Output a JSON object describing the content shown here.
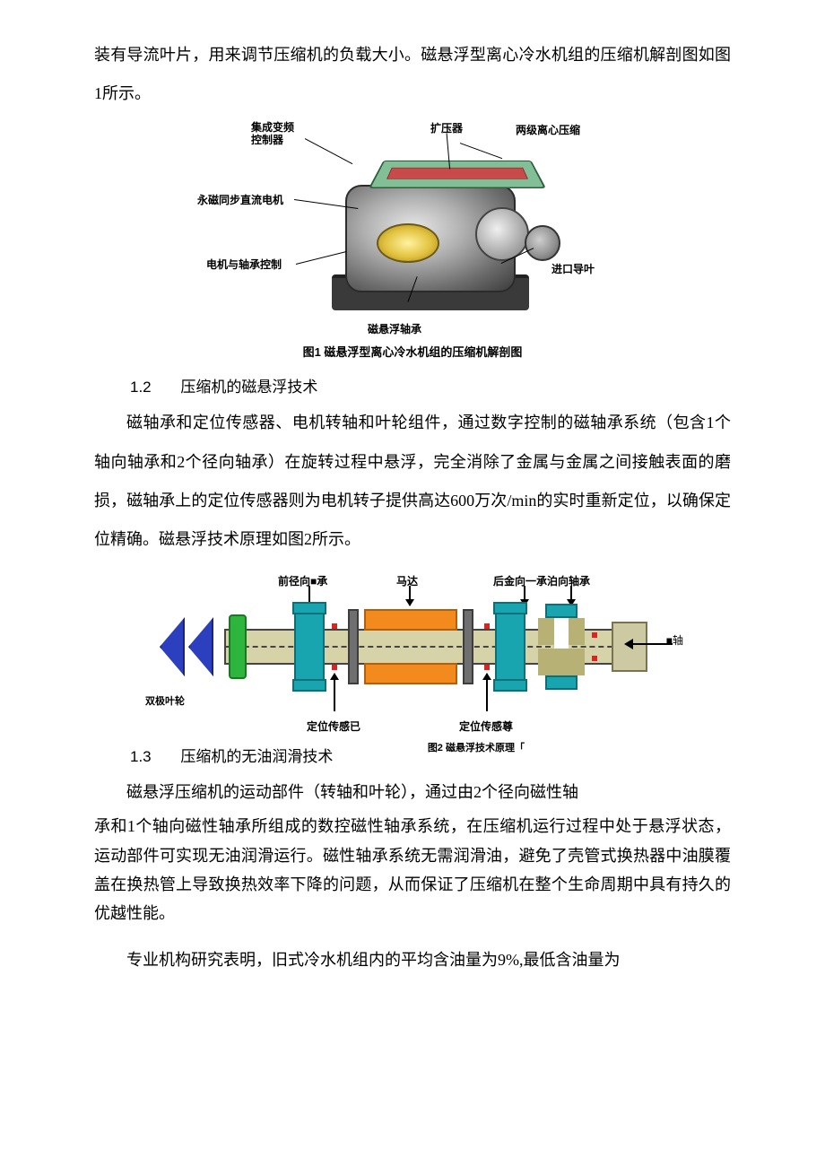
{
  "para1": "装有导流叶片，用来调节压缩机的负载大小。磁悬浮型离心冷水机组的压缩机解剖图如图1所示。",
  "fig1": {
    "callout_top_left": "集成变频\n控制器",
    "callout_top_mid": "扩压器",
    "callout_top_right": "两级离心压缩",
    "callout_left1": "永磁同步直流电机",
    "callout_left2": "电机与轴承控制",
    "callout_bottom": "磁悬浮轴承",
    "callout_right": "进口导叶",
    "caption": "图1 磁悬浮型离心冷水机组的压缩机解剖图"
  },
  "sec12_num": "1.2",
  "sec12_title": "压缩机的磁悬浮技术",
  "para12": "磁轴承和定位传感器、电机转轴和叶轮组件，通过数字控制的磁轴承系统（包含1个轴向轴承和2个径向轴承）在旋转过程中悬浮，完全消除了金属与金属之间接触表面的磨损，磁轴承上的定位传感器则为电机转子提供高达600万次/min的实时重新定位，以确保定位精确。磁悬浮技术原理如图2所示。",
  "fig2": {
    "label_front_bearing": "前径向■承",
    "label_motor": "马达",
    "label_rear": "后金向一承泊向轴承",
    "label_impeller": "双极叶轮",
    "label_sensor_left": "定位传感已",
    "label_sensor_right": "定位传感尊",
    "label_shaft": "■轴",
    "caption_frag": "图2 磁悬浮技术原理「",
    "colors": {
      "shaft": "#d7d3a8",
      "fan": "#2c3fbf",
      "green": "#2db53e",
      "bearing": "#18a5b0",
      "coil": "#f28a1e",
      "side": "#6f6f6f",
      "red": "#d22"
    }
  },
  "sec13_num": "1.3",
  "sec13_title": "压缩机的无油润滑技术",
  "para13a": "磁悬浮压缩机的运动部件（转轴和叶轮），通过由2个径向磁性轴",
  "para13b": "承和1个轴向磁性轴承所组成的数控磁性轴承系统，在压缩机运行过程中处于悬浮状态，运动部件可实现无油润滑运行。磁性轴承系统无需润滑油，避免了壳管式换热器中油膜覆盖在换热管上导致换热效率下降的问题，从而保证了压缩机在整个生命周期中具有持久的优越性能。",
  "para13c": "专业机构研究表明，旧式冷水机组内的平均含油量为9%,最低含油量为"
}
